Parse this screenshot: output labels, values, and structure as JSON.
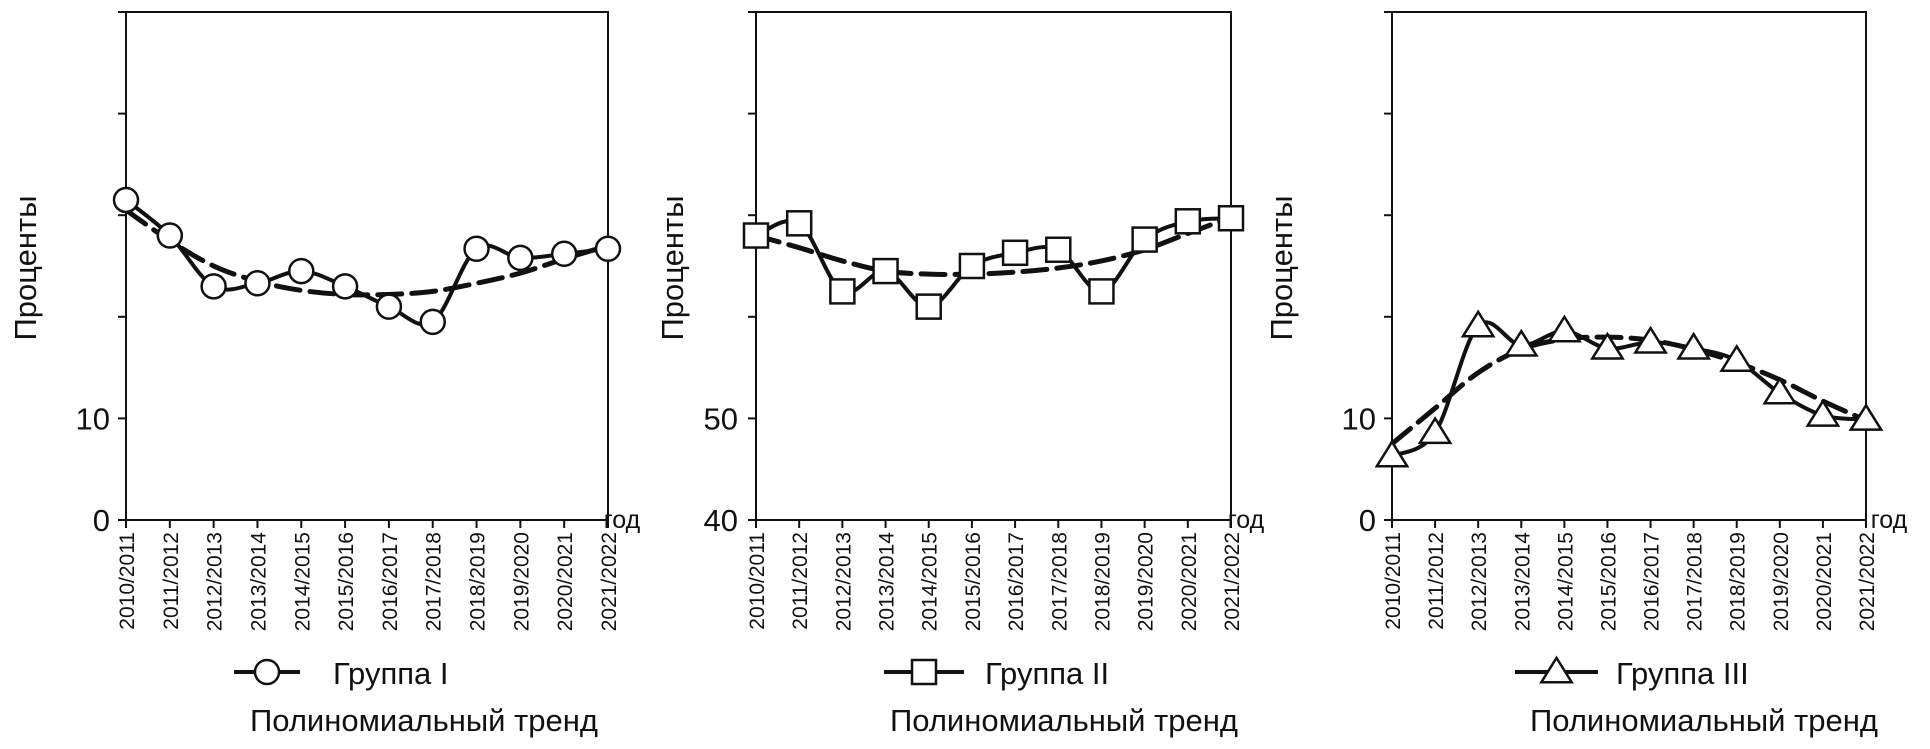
{
  "x_unit": "год",
  "trend_label": "Полиномиальный тренд",
  "chart_data": [
    {
      "type": "line",
      "ylabel": "Проценты",
      "x": [
        "2010/2011",
        "2011/2012",
        "2012/2013",
        "2013/2014",
        "2014/2015",
        "2015/2016",
        "2016/2017",
        "2017/2018",
        "2018/2019",
        "2019/2020",
        "2020/2021",
        "2021/2022"
      ],
      "ylim": [
        0,
        50
      ],
      "y_ticks": [
        0,
        10
      ],
      "series": [
        {
          "name": "Группа I",
          "marker": "circle",
          "values": [
            31.5,
            28.0,
            23.0,
            23.3,
            24.5,
            23.0,
            21.0,
            19.5,
            26.7,
            25.8,
            26.2,
            26.7
          ]
        },
        {
          "name": "Полиномиальный тренд",
          "style": "dashed",
          "values": [
            30.5,
            27.5,
            25.0,
            23.5,
            22.6,
            22.2,
            22.2,
            22.5,
            23.3,
            24.3,
            25.7,
            27.0
          ]
        }
      ]
    },
    {
      "type": "line",
      "ylabel": "Проценты",
      "x": [
        "2010/2011",
        "2011/2012",
        "2012/2013",
        "2013/2014",
        "2014/2015",
        "2015/2016",
        "2016/2017",
        "2017/2018",
        "2018/2019",
        "2019/2020",
        "2020/2021",
        "2021/2022"
      ],
      "ylim": [
        40,
        90
      ],
      "y_ticks": [
        40,
        50
      ],
      "series": [
        {
          "name": "Группа II",
          "marker": "square",
          "values": [
            68.0,
            69.2,
            62.5,
            64.5,
            61.0,
            65.0,
            66.3,
            66.6,
            62.5,
            67.6,
            69.4,
            69.7
          ]
        },
        {
          "name": "Полиномиальный тренд",
          "style": "dashed",
          "values": [
            68.0,
            66.8,
            65.5,
            64.5,
            64.2,
            64.2,
            64.4,
            64.8,
            65.5,
            66.6,
            68.2,
            69.8
          ]
        }
      ]
    },
    {
      "type": "line",
      "ylabel": "Проценты",
      "x": [
        "2010/2011",
        "2011/2012",
        "2012/2013",
        "2013/2014",
        "2014/2015",
        "2015/2016",
        "2016/2017",
        "2017/2018",
        "2018/2019",
        "2019/2020",
        "2020/2021",
        "2021/2022"
      ],
      "ylim": [
        0,
        50
      ],
      "y_ticks": [
        0,
        10
      ],
      "series": [
        {
          "name": "Группа III",
          "marker": "triangle",
          "values": [
            6.3,
            8.6,
            19.1,
            17.2,
            18.6,
            16.9,
            17.5,
            16.9,
            15.7,
            12.5,
            10.3,
            9.9
          ]
        },
        {
          "name": "Полиномиальный тренд",
          "style": "dashed",
          "values": [
            7.5,
            11.0,
            14.5,
            16.8,
            17.8,
            18.0,
            17.7,
            16.8,
            15.5,
            13.8,
            11.7,
            9.8
          ]
        }
      ]
    }
  ]
}
